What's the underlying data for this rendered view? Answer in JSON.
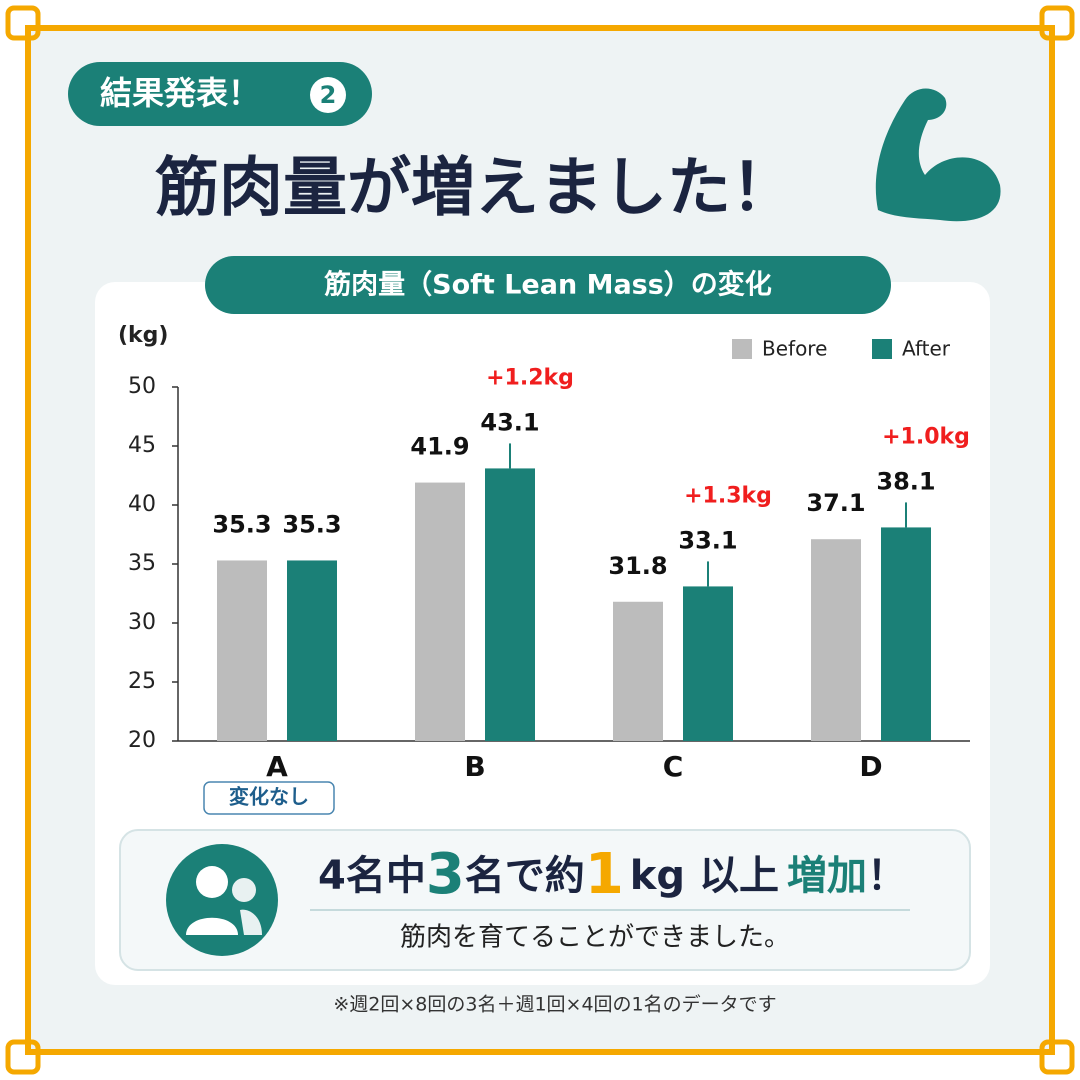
{
  "badge": "結果発表！",
  "badge_number": "2",
  "headline": "筋肉量が増えました！",
  "chart_data": {
    "type": "bar",
    "title": "筋肉量（Soft Lean Mass）の変化",
    "y_label": "(kg)",
    "categories": [
      "A",
      "B",
      "C",
      "D"
    ],
    "series": [
      {
        "name": "Before",
        "color": "#bcbcbc",
        "values": [
          35.3,
          41.9,
          31.8,
          37.1
        ]
      },
      {
        "name": "After",
        "color": "#1b8077",
        "values": [
          35.3,
          43.1,
          33.1,
          38.1
        ]
      }
    ],
    "change_labels": [
      null,
      "+1.2kg",
      "+1.3kg",
      "+1.0kg"
    ],
    "change_color": "#f01e1e",
    "note": "変化なし",
    "ylim": [
      20,
      50
    ],
    "yticks": [
      20,
      25,
      30,
      35,
      40,
      45,
      50
    ],
    "legend": "top-right"
  },
  "summary": {
    "parts": [
      "4名中",
      "3",
      "名で約",
      "1",
      "kg 以上",
      "増加",
      "！"
    ],
    "sub": "筋肉を育てることができました。"
  },
  "footnote": "※週2回×8回の3名＋週1回×4回の1名のデータです"
}
